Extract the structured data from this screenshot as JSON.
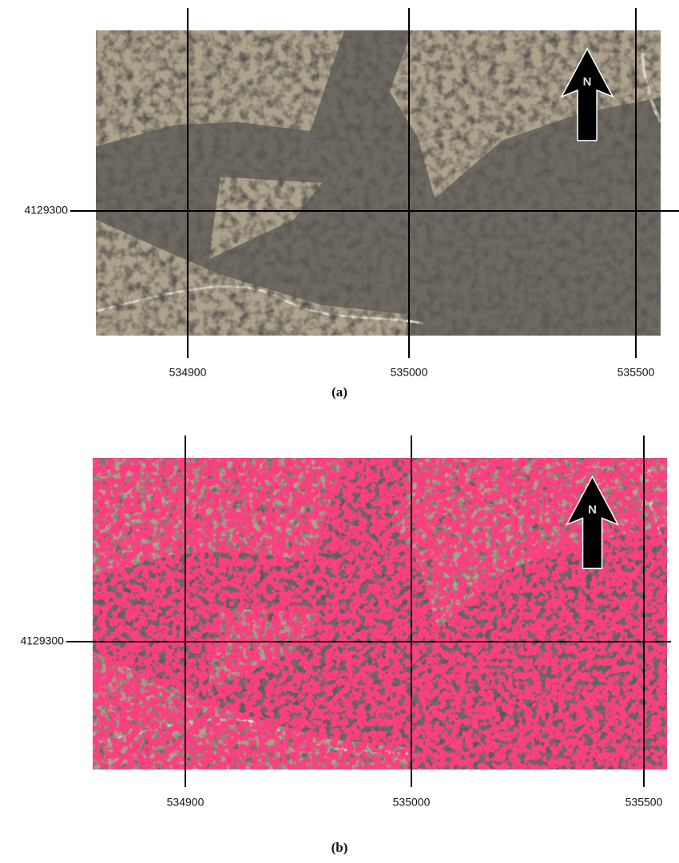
{
  "panels": [
    {
      "caption": "(a)",
      "north_label": "N",
      "easting_labels": [
        "534900",
        "535000",
        "535500"
      ],
      "northing_labels": [
        "4129300"
      ]
    },
    {
      "caption": "(b)",
      "north_label": "N",
      "easting_labels": [
        "534900",
        "535000",
        "535500"
      ],
      "northing_labels": [
        "4129300"
      ]
    }
  ]
}
